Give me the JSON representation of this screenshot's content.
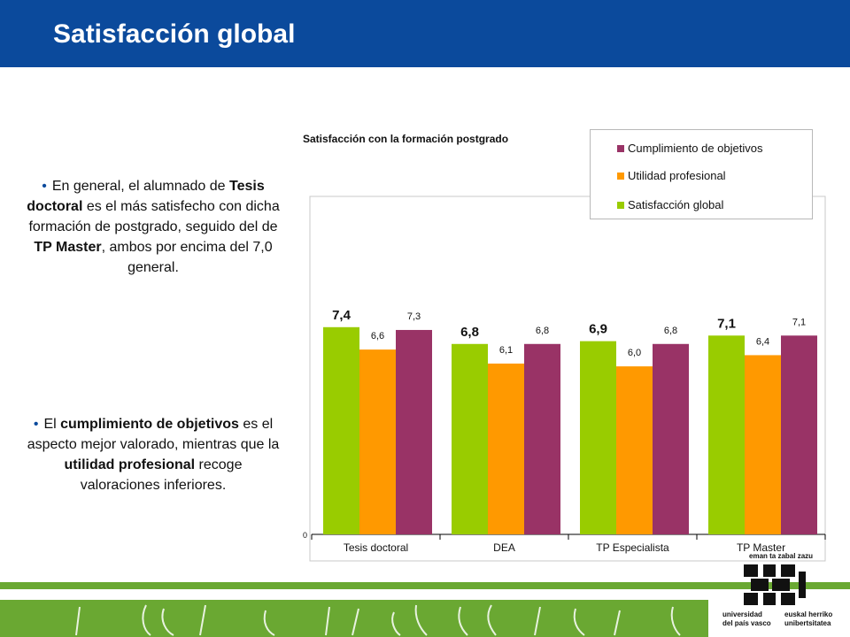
{
  "header": {
    "title": "Satisfacción global"
  },
  "text": {
    "p1": {
      "part1": "En general, el alumnado de ",
      "bold1": "Tesis doctoral",
      "part2": " es el más satisfecho con dicha formación de postgrado, seguido del de ",
      "bold2": "TP Master",
      "part3": ", ambos por encima del 7,0 general."
    },
    "p2": {
      "part1": "El ",
      "bold1": "cumplimiento de objetivos",
      "part2": " es el aspecto mejor valorado, mientras que la ",
      "bold2": "utilidad profesional",
      "part3": " recoge valoraciones inferiores."
    }
  },
  "logo": {
    "tagline": "eman ta zabal zazu",
    "left_line1": "universidad",
    "left_line2": "del país vasco",
    "right_line1": "euskal herriko",
    "right_line2": "unibertsitatea"
  },
  "colors": {
    "header": "#0b4a9c",
    "footer": "#6aa832",
    "global": "#99cc00",
    "utilidad": "#ff9900",
    "cumplimiento": "#993366"
  },
  "chart_data": {
    "type": "bar",
    "title": "Satisfacción con la formación postgrado",
    "categories": [
      "Tesis doctoral",
      "DEA",
      "TP Especialista",
      "TP Master"
    ],
    "series": [
      {
        "name": "Satisfacción global",
        "color": "#99cc00",
        "values": [
          7.4,
          6.8,
          6.9,
          7.1
        ],
        "labels": [
          "7,4",
          "6,8",
          "6,9",
          "7,1"
        ]
      },
      {
        "name": "Utilidad profesional",
        "color": "#ff9900",
        "values": [
          6.6,
          6.1,
          6.0,
          6.4
        ],
        "labels": [
          "6,6",
          "6,1",
          "6,0",
          "6,4"
        ]
      },
      {
        "name": "Cumplimiento de objetivos",
        "color": "#993366",
        "values": [
          7.3,
          6.8,
          6.8,
          7.1
        ],
        "labels": [
          "7,3",
          "6,8",
          "6,8",
          "7,1"
        ]
      }
    ],
    "legend": [
      {
        "name": "Cumplimiento de objetivos",
        "color": "#993366"
      },
      {
        "name": "Utilidad profesional",
        "color": "#ff9900"
      },
      {
        "name": "Satisfacción global",
        "color": "#99cc00"
      }
    ],
    "y_tick_label": "0",
    "ylim": [
      0,
      10
    ],
    "legend_position": "top-right",
    "grid": false
  }
}
